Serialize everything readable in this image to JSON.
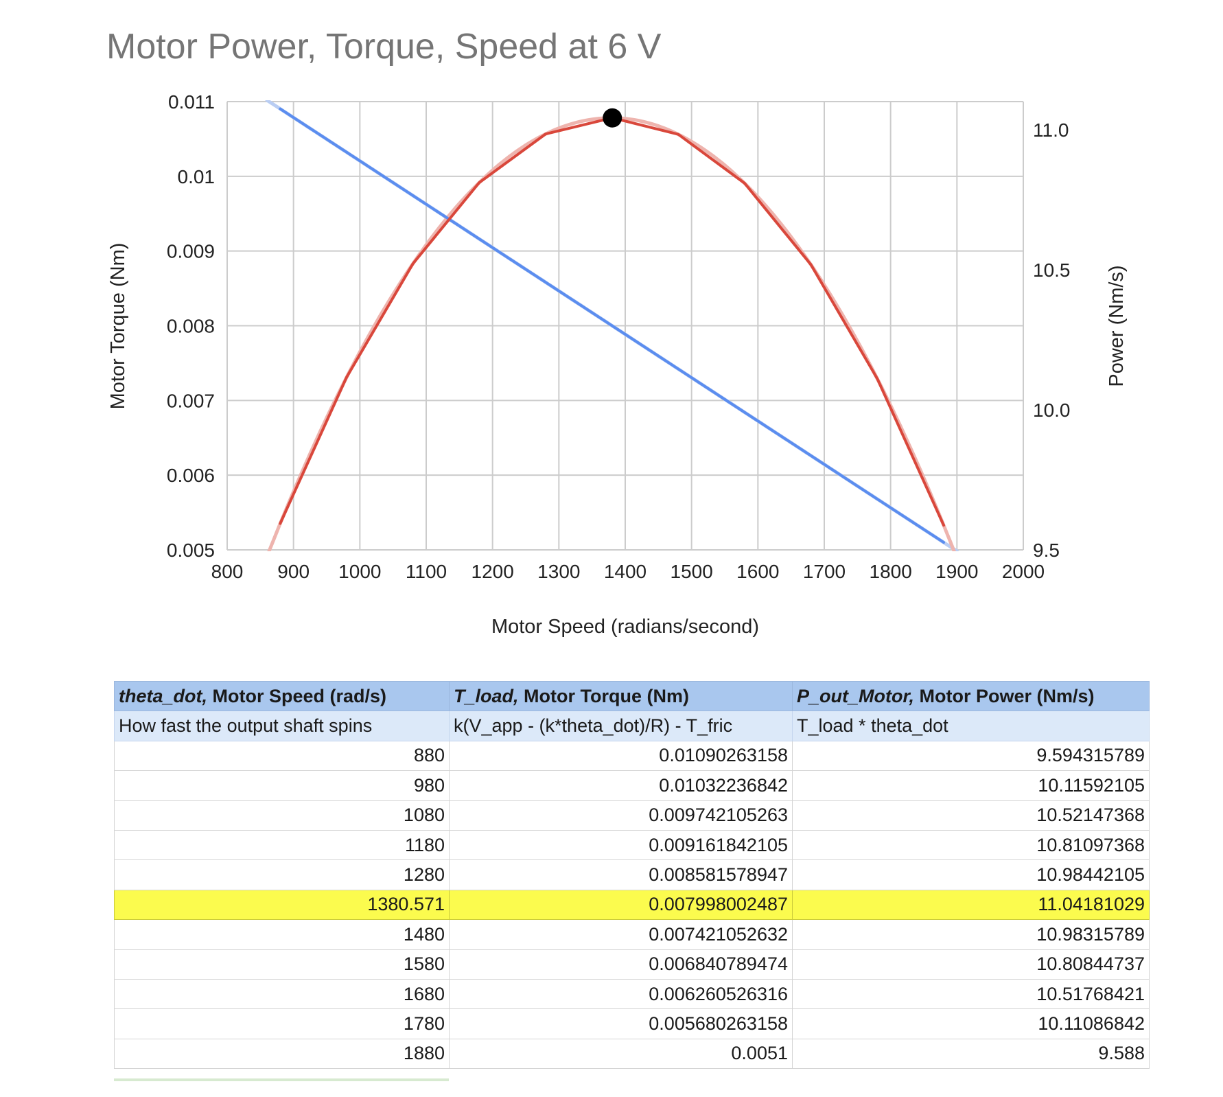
{
  "chart_data": {
    "type": "line",
    "title": "Motor Power, Torque, Speed at 6 V",
    "xlabel": "Motor Speed (radians/second)",
    "ylabel_left": "Motor Torque (Nm)",
    "ylabel_right": "Power (Nm/s)",
    "xlim": [
      800,
      2000
    ],
    "ylim_left": [
      0.005,
      0.011
    ],
    "ylim_right": [
      9.5,
      11.1
    ],
    "x_ticks": [
      "800",
      "900",
      "1000",
      "1100",
      "1200",
      "1300",
      "1400",
      "1500",
      "1600",
      "1700",
      "1800",
      "1900",
      "2000"
    ],
    "y_left_ticks": [
      "0.005",
      "0.006",
      "0.007",
      "0.008",
      "0.009",
      "0.01",
      "0.011"
    ],
    "y_right_ticks": [
      "9.5",
      "10.0",
      "10.5",
      "11.0"
    ],
    "grid": true,
    "x": [
      880,
      980,
      1080,
      1180,
      1280,
      1380.571,
      1480,
      1580,
      1680,
      1780,
      1880
    ],
    "series": [
      {
        "axis": "left",
        "color": "#5b8def",
        "values": [
          0.01090263158,
          0.01032236842,
          0.009742105263,
          0.009161842105,
          0.008581578947,
          0.007998002487,
          0.007421052632,
          0.006840789474,
          0.006260526316,
          0.005680263158,
          0.0051
        ]
      },
      {
        "axis": "right",
        "color": "#d9473b",
        "values": [
          9.594315789,
          10.11592105,
          10.52147368,
          10.81097368,
          10.98442105,
          11.04181029,
          10.98315789,
          10.80844737,
          10.51768421,
          10.11086842,
          9.588
        ]
      }
    ],
    "trendlines": [
      {
        "axis": "left",
        "type": "linear",
        "x_range": [
          860,
          1900
        ],
        "color": "#b9cdf3"
      },
      {
        "axis": "right",
        "type": "polynomial",
        "x_range": [
          860,
          1900
        ],
        "color": "#eeb4ae"
      }
    ],
    "highlight_point": {
      "axis": "right",
      "x": 1380.571,
      "y": 11.04181029,
      "color": "#000000"
    }
  },
  "table": {
    "headers": [
      {
        "italic": "theta_dot,",
        "rest": " Motor Speed (rad/s)"
      },
      {
        "italic": "T_load,",
        "rest": " Motor Torque (Nm)"
      },
      {
        "italic": "P_out_Motor,",
        "rest": " Motor Power (Nm/s)"
      }
    ],
    "descriptions": [
      "How fast the output shaft spins",
      "k(V_app - (k*theta_dot)/R) - T_fric",
      "T_load * theta_dot"
    ],
    "rows": [
      [
        "880",
        "0.01090263158",
        "9.594315789"
      ],
      [
        "980",
        "0.01032236842",
        "10.11592105"
      ],
      [
        "1080",
        "0.009742105263",
        "10.52147368"
      ],
      [
        "1180",
        "0.009161842105",
        "10.81097368"
      ],
      [
        "1280",
        "0.008581578947",
        "10.98442105"
      ],
      [
        "1380.571",
        "0.007998002487",
        "11.04181029"
      ],
      [
        "1480",
        "0.007421052632",
        "10.98315789"
      ],
      [
        "1580",
        "0.006840789474",
        "10.80844737"
      ],
      [
        "1680",
        "0.006260526316",
        "10.51768421"
      ],
      [
        "1780",
        "0.005680263158",
        "10.11086842"
      ],
      [
        "1880",
        "0.0051",
        "9.588"
      ]
    ],
    "highlight_row": 5,
    "highlight_color": "#fbfb4e"
  }
}
